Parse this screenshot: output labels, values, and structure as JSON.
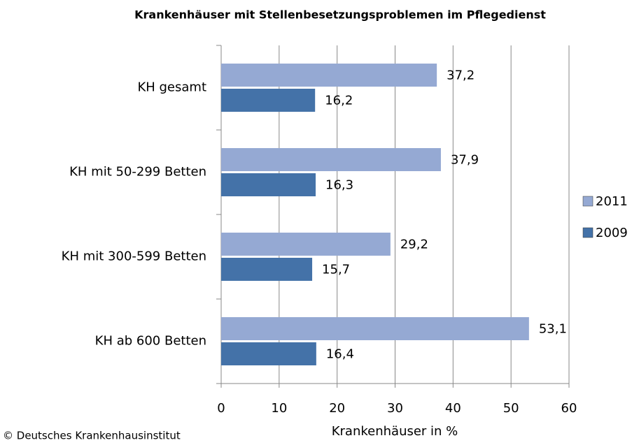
{
  "chart_data": {
    "type": "bar",
    "orientation": "horizontal",
    "title": "Krankenhäuser mit Stellenbesetzungsproblemen im Pflegedienst",
    "x_label": "Krankenhäuser in %",
    "source": "© Deutsches Krankenhausinstitut",
    "categories": [
      "KH gesamt",
      "KH mit 50-299 Betten",
      "KH mit 300-599 Betten",
      "KH ab 600 Betten"
    ],
    "series": [
      {
        "name": "2011",
        "color": "#95a9d3",
        "values": [
          37.2,
          37.9,
          29.2,
          53.1
        ],
        "value_labels": [
          "37,2",
          "37,9",
          "29,2",
          "53,1"
        ]
      },
      {
        "name": "2009",
        "color": "#4472a8",
        "values": [
          16.2,
          16.3,
          15.7,
          16.4
        ],
        "value_labels": [
          "16,2",
          "16,3",
          "15,7",
          "16,4"
        ]
      }
    ],
    "xlim": [
      0,
      60
    ],
    "xticks": [
      0,
      10,
      20,
      30,
      40,
      50,
      60
    ],
    "grid": true,
    "legend": "right"
  }
}
